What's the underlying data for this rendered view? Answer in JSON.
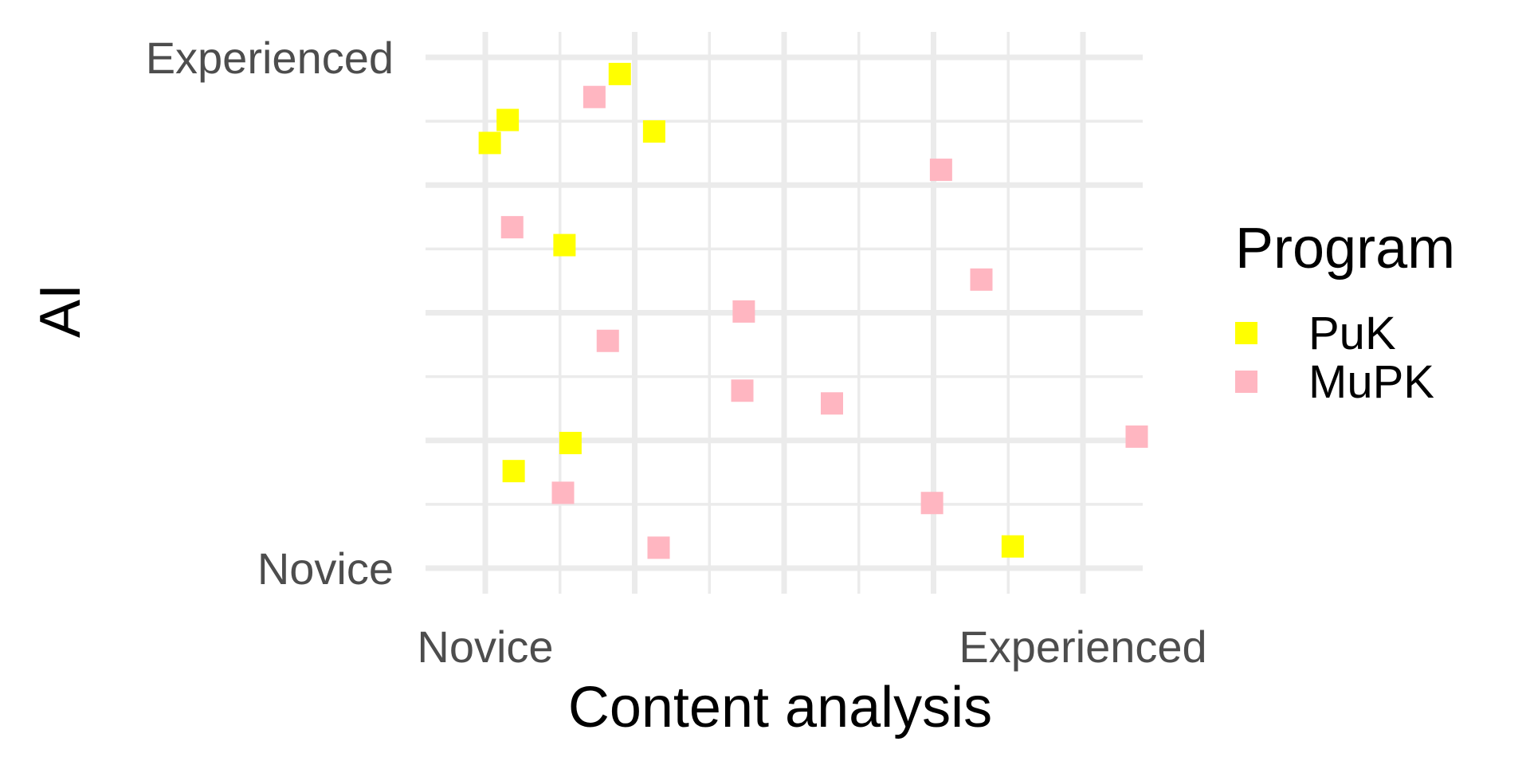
{
  "chart_data": {
    "type": "scatter",
    "title": "",
    "xlabel": "Content analysis",
    "ylabel": "AI",
    "xlim": [
      0.6,
      5.4
    ],
    "ylim": [
      0.8,
      5.2
    ],
    "x_ticks": [
      {
        "value": 1,
        "label": "Novice"
      },
      {
        "value": 5,
        "label": "Experienced"
      }
    ],
    "y_ticks": [
      {
        "value": 1,
        "label": "Novice"
      },
      {
        "value": 5,
        "label": "Experienced"
      }
    ],
    "grid": true,
    "legend": {
      "title": "Program",
      "position": "right"
    },
    "series": [
      {
        "name": "PuK",
        "color": "#FFFF00",
        "marker": "square",
        "points": [
          {
            "x": 1.03,
            "y": 4.33
          },
          {
            "x": 1.15,
            "y": 4.51
          },
          {
            "x": 1.9,
            "y": 4.87
          },
          {
            "x": 2.13,
            "y": 4.42
          },
          {
            "x": 1.53,
            "y": 3.53
          },
          {
            "x": 1.57,
            "y": 1.98
          },
          {
            "x": 1.19,
            "y": 1.76
          },
          {
            "x": 4.53,
            "y": 1.17
          }
        ]
      },
      {
        "name": "MuPK",
        "color": "#FFB6C1",
        "marker": "square",
        "points": [
          {
            "x": 1.73,
            "y": 4.69
          },
          {
            "x": 4.05,
            "y": 4.12
          },
          {
            "x": 1.18,
            "y": 3.67
          },
          {
            "x": 4.32,
            "y": 3.26
          },
          {
            "x": 2.73,
            "y": 3.01
          },
          {
            "x": 1.82,
            "y": 2.78
          },
          {
            "x": 2.72,
            "y": 2.39
          },
          {
            "x": 3.32,
            "y": 2.29
          },
          {
            "x": 5.36,
            "y": 2.03
          },
          {
            "x": 1.52,
            "y": 1.59
          },
          {
            "x": 3.99,
            "y": 1.51
          },
          {
            "x": 2.16,
            "y": 1.16
          }
        ]
      }
    ]
  }
}
